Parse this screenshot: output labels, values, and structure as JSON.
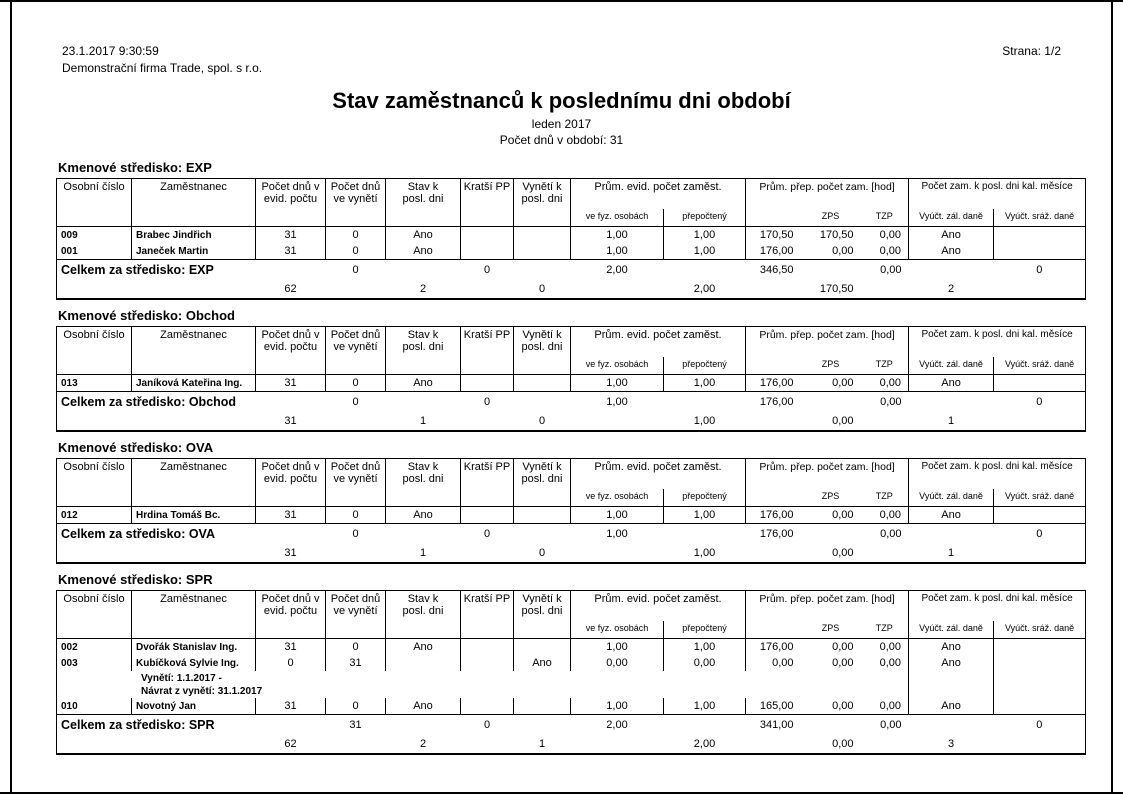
{
  "page": {
    "datetime": "23.1.2017 9:30:59",
    "company": "Demonstrační firma Trade, spol. s r.o.",
    "page_label": "Strana: 1/2",
    "title": "Stav zaměstnanců k poslednímu dni období",
    "period": "leden 2017",
    "days_in_period": "Počet dnů v období: 31"
  },
  "table_headers": {
    "osobni_cislo": "Osobní číslo",
    "zamestnanec": "Zaměstnanec",
    "pocet_dnu_evid": "Počet dnů v\nevid. počtu",
    "pocet_dnu_vyneti": "Počet dnů\nve vynětí",
    "stav": "Stav k\nposl. dni",
    "kratsi_pp": "Kratší PP",
    "vyneti_k": "Vynětí k\nposl. dni",
    "prum_evid": "Prům. evid. počet zaměst.",
    "ve_fyz": "ve fyz. osobách",
    "prepocteny": "přepočtený",
    "prum_prep": "Prům. přep. počet zam. [hod]",
    "zps": "ZPS",
    "tzp": "TZP",
    "pocet_zam": "Počet zam. k posl. dni kal. měsíce",
    "vyuct_zal": "Vyúčt. zál. daně",
    "vyuct_sraz": "Vyúčt. sráž. daně"
  },
  "sections": [
    {
      "title": "Kmenové středisko: EXP",
      "total_label": "Celkem za středisko: EXP",
      "rows": [
        {
          "osobni": "009",
          "name": "Brabec Jindřich",
          "evid": "31",
          "vyneti": "0",
          "stav": "Ano",
          "kratsi": "",
          "vyneti_k": "",
          "fyz": "1,00",
          "prep": "1,00",
          "hod": "170,50",
          "zps": "170,50",
          "tzp": "0,00",
          "zal": "Ano",
          "sraz": ""
        },
        {
          "osobni": "001",
          "name": "Janeček Martin",
          "evid": "31",
          "vyneti": "0",
          "stav": "Ano",
          "kratsi": "",
          "vyneti_k": "",
          "fyz": "1,00",
          "prep": "1,00",
          "hod": "176,00",
          "zps": "0,00",
          "tzp": "0,00",
          "zal": "Ano",
          "sraz": ""
        }
      ],
      "totals1": {
        "vyneti": "0",
        "kratsi": "0",
        "fyz": "2,00",
        "hod": "346,50",
        "tzp": "0,00",
        "sraz": "0"
      },
      "totals2": {
        "evid": "62",
        "stav": "2",
        "vyneti_k": "0",
        "prep": "2,00",
        "zps": "170,50",
        "zal": "2"
      }
    },
    {
      "title": "Kmenové středisko: Obchod",
      "total_label": "Celkem za středisko: Obchod",
      "rows": [
        {
          "osobni": "013",
          "name": "Janíková Kateřina Ing.",
          "evid": "31",
          "vyneti": "0",
          "stav": "Ano",
          "kratsi": "",
          "vyneti_k": "",
          "fyz": "1,00",
          "prep": "1,00",
          "hod": "176,00",
          "zps": "0,00",
          "tzp": "0,00",
          "zal": "Ano",
          "sraz": ""
        }
      ],
      "totals1": {
        "vyneti": "0",
        "kratsi": "0",
        "fyz": "1,00",
        "hod": "176,00",
        "tzp": "0,00",
        "sraz": "0"
      },
      "totals2": {
        "evid": "31",
        "stav": "1",
        "vyneti_k": "0",
        "prep": "1,00",
        "zps": "0,00",
        "zal": "1"
      }
    },
    {
      "title": "Kmenové středisko: OVA",
      "total_label": "Celkem za středisko: OVA",
      "rows": [
        {
          "osobni": "012",
          "name": "Hrdina Tomáš Bc.",
          "evid": "31",
          "vyneti": "0",
          "stav": "Ano",
          "kratsi": "",
          "vyneti_k": "",
          "fyz": "1,00",
          "prep": "1,00",
          "hod": "176,00",
          "zps": "0,00",
          "tzp": "0,00",
          "zal": "Ano",
          "sraz": ""
        }
      ],
      "totals1": {
        "vyneti": "0",
        "kratsi": "0",
        "fyz": "1,00",
        "hod": "176,00",
        "tzp": "0,00",
        "sraz": "0"
      },
      "totals2": {
        "evid": "31",
        "stav": "1",
        "vyneti_k": "0",
        "prep": "1,00",
        "zps": "0,00",
        "zal": "1"
      }
    },
    {
      "title": "Kmenové středisko: SPR",
      "total_label": "Celkem za středisko: SPR",
      "rows": [
        {
          "osobni": "002",
          "name": "Dvořák Stanislav Ing.",
          "evid": "31",
          "vyneti": "0",
          "stav": "Ano",
          "kratsi": "",
          "vyneti_k": "",
          "fyz": "1,00",
          "prep": "1,00",
          "hod": "176,00",
          "zps": "0,00",
          "tzp": "0,00",
          "zal": "Ano",
          "sraz": ""
        },
        {
          "osobni": "003",
          "name": "Kubíčková Sylvie Ing.",
          "evid": "0",
          "vyneti": "31",
          "stav": "",
          "kratsi": "",
          "vyneti_k": "Ano",
          "fyz": "0,00",
          "prep": "0,00",
          "hod": "0,00",
          "zps": "0,00",
          "tzp": "0,00",
          "zal": "Ano",
          "sraz": "",
          "notes": [
            "Vynětí: 1.1.2017 -",
            "Návrat z vynětí: 31.1.2017"
          ]
        },
        {
          "osobni": "010",
          "name": "Novotný Jan",
          "evid": "31",
          "vyneti": "0",
          "stav": "Ano",
          "kratsi": "",
          "vyneti_k": "",
          "fyz": "1,00",
          "prep": "1,00",
          "hod": "165,00",
          "zps": "0,00",
          "tzp": "0,00",
          "zal": "Ano",
          "sraz": ""
        }
      ],
      "totals1": {
        "vyneti": "31",
        "kratsi": "0",
        "fyz": "2,00",
        "hod": "341,00",
        "tzp": "0,00",
        "sraz": "0"
      },
      "totals2": {
        "evid": "62",
        "stav": "2",
        "vyneti_k": "1",
        "prep": "2,00",
        "zps": "0,00",
        "zal": "3"
      }
    }
  ]
}
